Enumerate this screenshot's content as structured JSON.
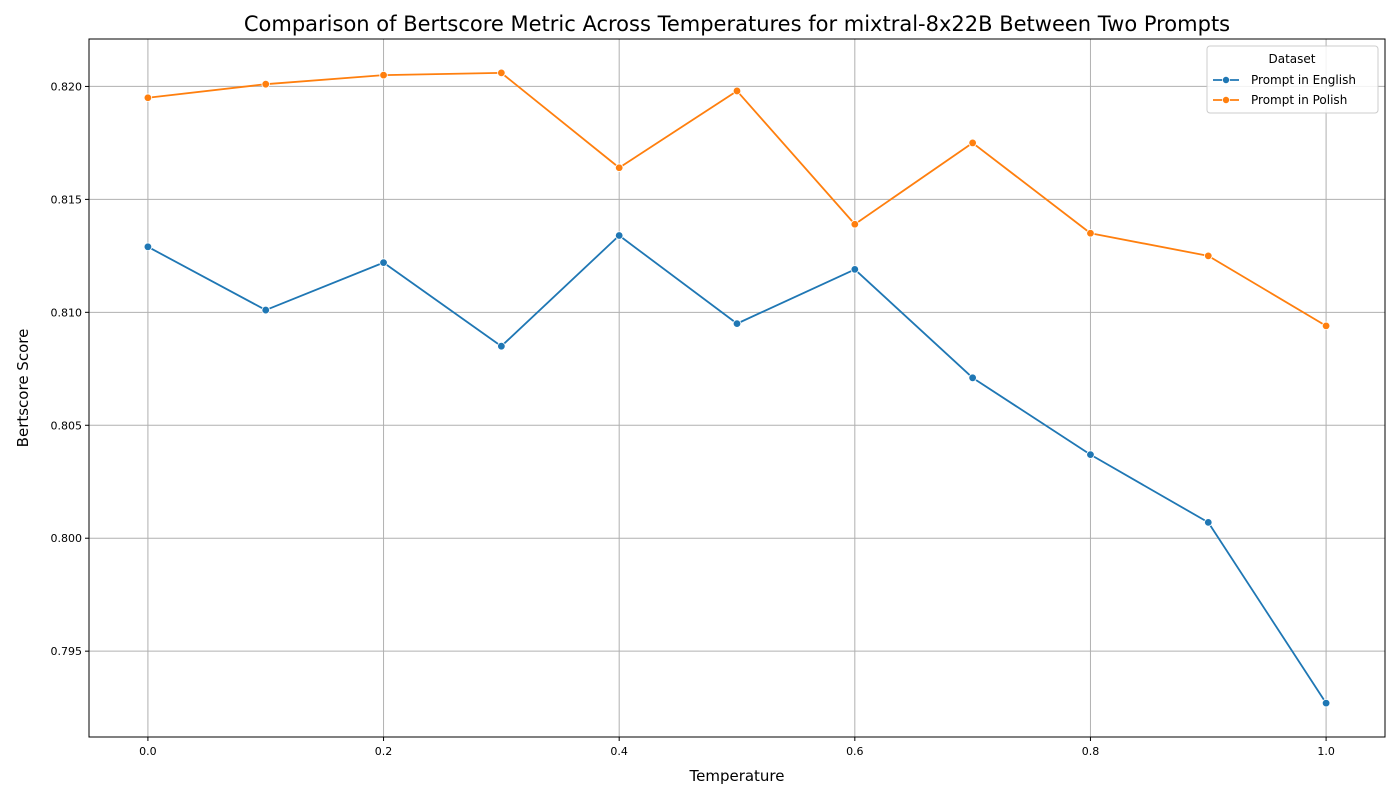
{
  "chart_data": {
    "type": "line",
    "title": "Comparison of Bertscore Metric Across Temperatures for mixtral-8x22B Between Two Prompts",
    "xlabel": "Temperature",
    "ylabel": "Bertscore Score",
    "x": [
      0.0,
      0.1,
      0.2,
      0.3,
      0.4,
      0.5,
      0.6,
      0.7,
      0.8,
      0.9,
      1.0
    ],
    "xlim": [
      -0.05,
      1.05
    ],
    "ylim": [
      0.7912,
      0.8221
    ],
    "x_ticks": [
      0.0,
      0.2,
      0.4,
      0.6,
      0.8,
      1.0
    ],
    "x_tick_labels": [
      "0.0",
      "0.2",
      "0.4",
      "0.6",
      "0.8",
      "1.0"
    ],
    "y_ticks": [
      0.795,
      0.8,
      0.805,
      0.81,
      0.815,
      0.82
    ],
    "y_tick_labels": [
      "0.795",
      "0.800",
      "0.805",
      "0.810",
      "0.815",
      "0.820"
    ],
    "grid": true,
    "legend": {
      "title": "Dataset",
      "placement": "top-right"
    },
    "series": [
      {
        "name": "Prompt in English",
        "color": "#1f77b4",
        "values": [
          0.8129,
          0.8101,
          0.8122,
          0.8085,
          0.8134,
          0.8095,
          0.8119,
          0.8071,
          0.8037,
          0.8007,
          0.7927
        ]
      },
      {
        "name": "Prompt in Polish",
        "color": "#ff7f0e",
        "values": [
          0.8195,
          0.8201,
          0.8205,
          0.8206,
          0.8164,
          0.8198,
          0.8139,
          0.8175,
          0.8135,
          0.8125,
          0.8094
        ]
      }
    ]
  }
}
